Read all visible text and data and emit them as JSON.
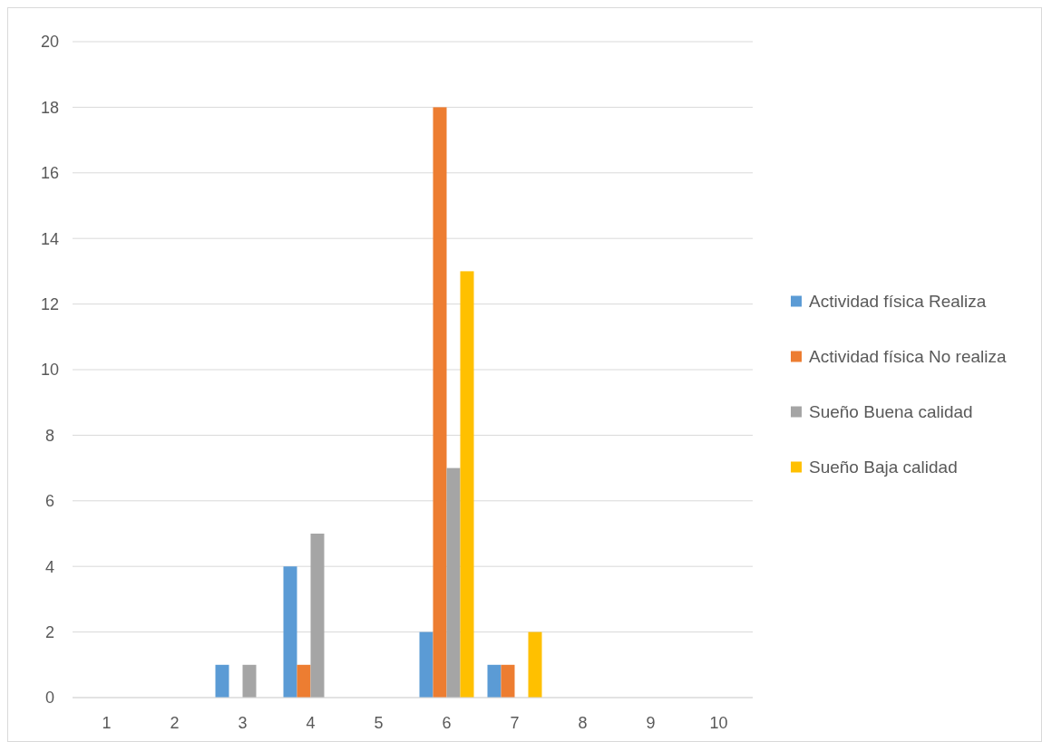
{
  "chart_data": {
    "type": "bar",
    "categories": [
      "1",
      "2",
      "3",
      "4",
      "5",
      "6",
      "7",
      "8",
      "9",
      "10"
    ],
    "series": [
      {
        "name": "Actividad física Realiza",
        "color": "#5b9bd5",
        "values": [
          0,
          0,
          1,
          4,
          0,
          2,
          1,
          0,
          0,
          0
        ]
      },
      {
        "name": "Actividad física No realiza",
        "color": "#ed7d31",
        "values": [
          0,
          0,
          0,
          1,
          0,
          18,
          1,
          0,
          0,
          0
        ]
      },
      {
        "name": "Sueño Buena calidad",
        "color": "#a5a5a5",
        "values": [
          0,
          0,
          1,
          5,
          0,
          7,
          0,
          0,
          0,
          0
        ]
      },
      {
        "name": "Sueño Baja calidad",
        "color": "#ffc000",
        "values": [
          0,
          0,
          0,
          0,
          0,
          13,
          2,
          0,
          0,
          0
        ]
      }
    ],
    "ylim": [
      0,
      20
    ],
    "yticks": [
      0,
      2,
      4,
      6,
      8,
      10,
      12,
      14,
      16,
      18,
      20
    ],
    "grid": "y",
    "legend": "right"
  }
}
